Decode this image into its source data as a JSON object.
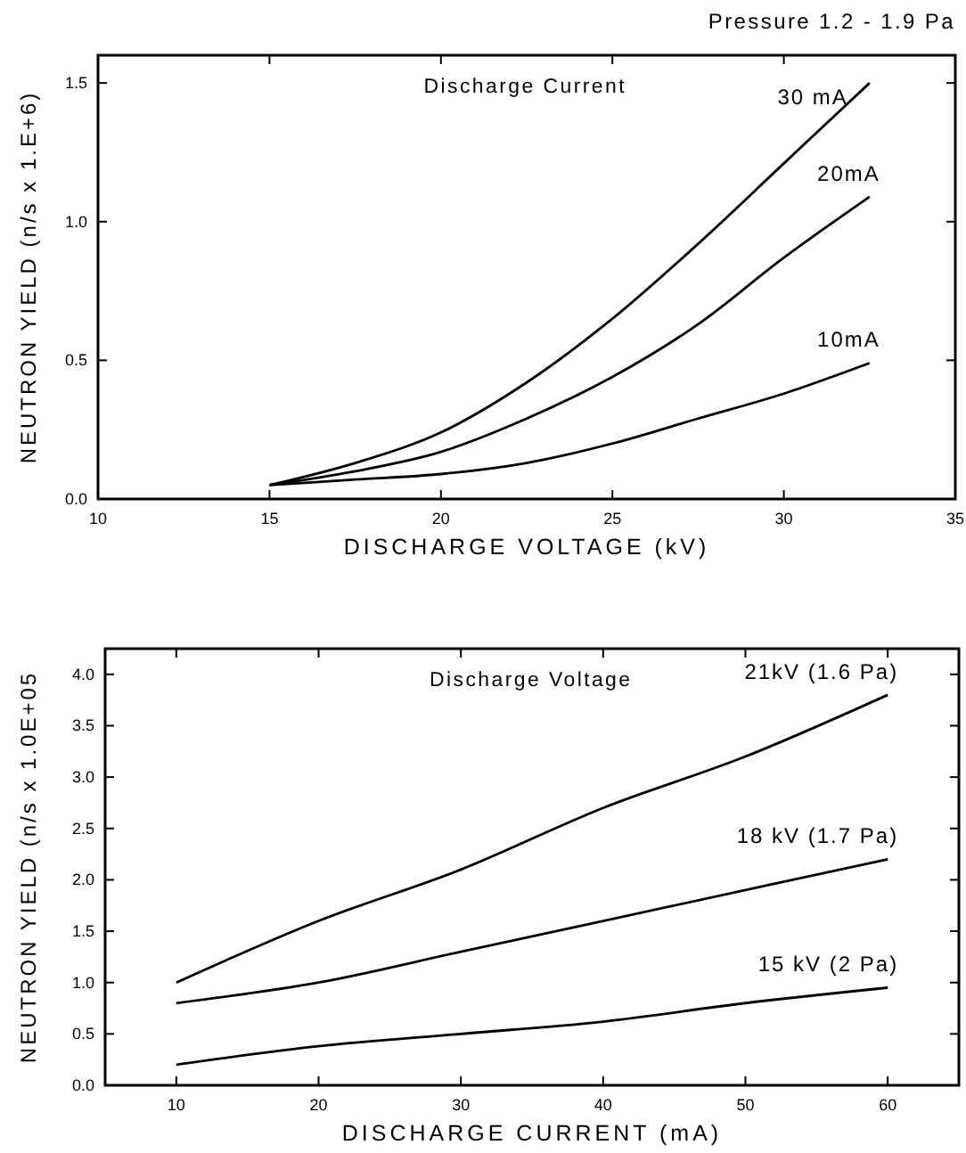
{
  "chart_data": [
    {
      "type": "line",
      "title": "Pressure 1.2 - 1.9 Pa",
      "xlabel": "DISCHARGE VOLTAGE (kV)",
      "ylabel": "NEUTRON YIELD (n/s x 1.E+6)",
      "legend_title": "Discharge Current",
      "x": [
        15,
        17.5,
        20,
        22.5,
        25,
        27.5,
        30,
        32.5
      ],
      "series": [
        {
          "name": "30 mA",
          "color": "#000000",
          "values": [
            0.05,
            0.13,
            0.24,
            0.42,
            0.65,
            0.92,
            1.21,
            1.5
          ]
        },
        {
          "name": "20mA",
          "color": "#000000",
          "values": [
            0.05,
            0.1,
            0.17,
            0.29,
            0.44,
            0.63,
            0.87,
            1.09
          ]
        },
        {
          "name": "10mA",
          "color": "#000000",
          "values": [
            0.05,
            0.07,
            0.09,
            0.13,
            0.2,
            0.29,
            0.38,
            0.49
          ]
        }
      ],
      "xlim": [
        10,
        35
      ],
      "xticks": [
        10,
        15,
        20,
        25,
        30,
        35
      ],
      "ylim": [
        0,
        1.6
      ],
      "yticks": [
        {
          "value": 0,
          "label": "0.0"
        },
        {
          "value": 0.5,
          "label": "0.5"
        },
        {
          "value": 1,
          "label": "1.0"
        },
        {
          "value": 1.5,
          "label": "1.5"
        }
      ],
      "grid": false,
      "legend": "top right",
      "marker": "none",
      "line_style": "solid"
    },
    {
      "type": "line",
      "xlabel": "DISCHARGE CURRENT (mA)",
      "ylabel": "NEUTRON YIELD (n/s x 1.0E+05",
      "legend_title": "Discharge Voltage",
      "x": [
        10,
        20,
        30,
        40,
        50,
        60
      ],
      "series": [
        {
          "name": "21kV (1.6 Pa)",
          "color": "#000000",
          "values": [
            1.0,
            1.6,
            2.1,
            2.7,
            3.2,
            3.8
          ]
        },
        {
          "name": "18 kV (1.7 Pa)",
          "color": "#000000",
          "values": [
            0.8,
            1.0,
            1.3,
            1.6,
            1.9,
            2.2
          ]
        },
        {
          "name": "15 kV (2 Pa)",
          "color": "#000000",
          "values": [
            0.2,
            0.38,
            0.5,
            0.62,
            0.8,
            0.95
          ]
        }
      ],
      "xlim": [
        5,
        65
      ],
      "xticks": [
        10,
        20,
        30,
        40,
        50,
        60
      ],
      "ylim": [
        0,
        4.25
      ],
      "yticks": [
        {
          "value": 0,
          "label": "0.0"
        },
        {
          "value": 0.5,
          "label": "0.5"
        },
        {
          "value": 1,
          "label": "1.0"
        },
        {
          "value": 1.5,
          "label": "1.5"
        },
        {
          "value": 2,
          "label": "2.0"
        },
        {
          "value": 2.5,
          "label": "2.5"
        },
        {
          "value": 3,
          "label": "3.0"
        },
        {
          "value": 3.5,
          "label": "3.5"
        },
        {
          "value": 4,
          "label": "4.0"
        }
      ],
      "grid": false,
      "legend": "top right",
      "marker": "none",
      "line_style": "solid"
    }
  ]
}
